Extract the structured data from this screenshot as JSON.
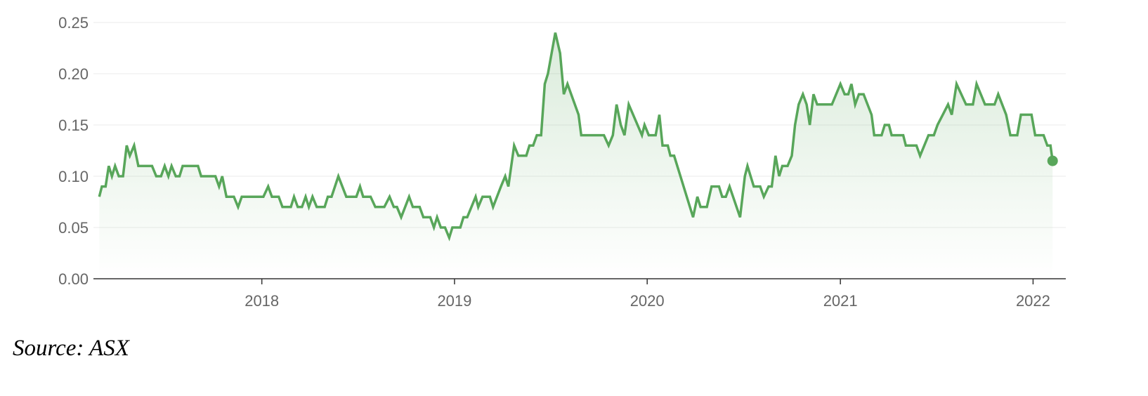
{
  "chart_data": {
    "type": "area",
    "title": "",
    "xlabel": "",
    "ylabel": "",
    "ylim": [
      0,
      0.25
    ],
    "xlim": [
      "2017-02-16",
      "2022-03-04"
    ],
    "yticks": [
      "0.00",
      "0.05",
      "0.10",
      "0.15",
      "0.20",
      "0.25"
    ],
    "xticks": [
      "2018",
      "2019",
      "2020",
      "2021",
      "2022"
    ],
    "grid": true,
    "colors": {
      "line": "#58a65a",
      "fill": "#58a65a"
    },
    "series": [
      {
        "points": [
          [
            "2017-02-27",
            0.08
          ],
          [
            "2017-03-04",
            0.09
          ],
          [
            "2017-03-11",
            0.09
          ],
          [
            "2017-03-17",
            0.11
          ],
          [
            "2017-03-23",
            0.1
          ],
          [
            "2017-03-29",
            0.11
          ],
          [
            "2017-04-05",
            0.1
          ],
          [
            "2017-04-13",
            0.1
          ],
          [
            "2017-04-20",
            0.13
          ],
          [
            "2017-04-26",
            0.12
          ],
          [
            "2017-05-04",
            0.13
          ],
          [
            "2017-05-12",
            0.11
          ],
          [
            "2017-06-07",
            0.11
          ],
          [
            "2017-06-15",
            0.1
          ],
          [
            "2017-06-24",
            0.1
          ],
          [
            "2017-07-01",
            0.11
          ],
          [
            "2017-07-08",
            0.1
          ],
          [
            "2017-07-14",
            0.11
          ],
          [
            "2017-07-22",
            0.1
          ],
          [
            "2017-07-29",
            0.1
          ],
          [
            "2017-08-04",
            0.11
          ],
          [
            "2017-09-02",
            0.11
          ],
          [
            "2017-09-08",
            0.1
          ],
          [
            "2017-10-05",
            0.1
          ],
          [
            "2017-10-12",
            0.09
          ],
          [
            "2017-10-18",
            0.1
          ],
          [
            "2017-10-26",
            0.08
          ],
          [
            "2017-11-09",
            0.08
          ],
          [
            "2017-11-17",
            0.07
          ],
          [
            "2017-11-24",
            0.08
          ],
          [
            "2018-01-04",
            0.08
          ],
          [
            "2018-01-13",
            0.09
          ],
          [
            "2018-01-20",
            0.08
          ],
          [
            "2018-02-02",
            0.08
          ],
          [
            "2018-02-09",
            0.07
          ],
          [
            "2018-02-25",
            0.07
          ],
          [
            "2018-03-03",
            0.08
          ],
          [
            "2018-03-10",
            0.07
          ],
          [
            "2018-03-18",
            0.07
          ],
          [
            "2018-03-25",
            0.08
          ],
          [
            "2018-03-31",
            0.07
          ],
          [
            "2018-04-07",
            0.08
          ],
          [
            "2018-04-15",
            0.07
          ],
          [
            "2018-04-30",
            0.07
          ],
          [
            "2018-05-06",
            0.08
          ],
          [
            "2018-05-13",
            0.08
          ],
          [
            "2018-05-26",
            0.1
          ],
          [
            "2018-06-10",
            0.08
          ],
          [
            "2018-06-29",
            0.08
          ],
          [
            "2018-07-06",
            0.09
          ],
          [
            "2018-07-12",
            0.08
          ],
          [
            "2018-07-26",
            0.08
          ],
          [
            "2018-08-04",
            0.07
          ],
          [
            "2018-08-21",
            0.07
          ],
          [
            "2018-08-31",
            0.08
          ],
          [
            "2018-09-08",
            0.07
          ],
          [
            "2018-09-14",
            0.07
          ],
          [
            "2018-09-22",
            0.06
          ],
          [
            "2018-10-07",
            0.08
          ],
          [
            "2018-10-14",
            0.07
          ],
          [
            "2018-10-27",
            0.07
          ],
          [
            "2018-11-03",
            0.06
          ],
          [
            "2018-11-16",
            0.06
          ],
          [
            "2018-11-23",
            0.05
          ],
          [
            "2018-11-29",
            0.06
          ],
          [
            "2018-12-06",
            0.05
          ],
          [
            "2018-12-14",
            0.05
          ],
          [
            "2018-12-22",
            0.04
          ],
          [
            "2018-12-28",
            0.05
          ],
          [
            "2019-01-12",
            0.05
          ],
          [
            "2019-01-18",
            0.06
          ],
          [
            "2019-01-25",
            0.06
          ],
          [
            "2019-02-02",
            0.07
          ],
          [
            "2019-02-10",
            0.08
          ],
          [
            "2019-02-15",
            0.07
          ],
          [
            "2019-02-23",
            0.08
          ],
          [
            "2019-03-09",
            0.08
          ],
          [
            "2019-03-15",
            0.07
          ],
          [
            "2019-03-30",
            0.09
          ],
          [
            "2019-04-07",
            0.1
          ],
          [
            "2019-04-13",
            0.09
          ],
          [
            "2019-04-24",
            0.13
          ],
          [
            "2019-05-02",
            0.12
          ],
          [
            "2019-05-17",
            0.12
          ],
          [
            "2019-05-23",
            0.13
          ],
          [
            "2019-05-30",
            0.13
          ],
          [
            "2019-06-06",
            0.14
          ],
          [
            "2019-06-14",
            0.14
          ],
          [
            "2019-06-21",
            0.19
          ],
          [
            "2019-06-27",
            0.2
          ],
          [
            "2019-07-11",
            0.24
          ],
          [
            "2019-07-20",
            0.22
          ],
          [
            "2019-07-27",
            0.18
          ],
          [
            "2019-08-03",
            0.19
          ],
          [
            "2019-08-24",
            0.16
          ],
          [
            "2019-08-29",
            0.14
          ],
          [
            "2019-10-11",
            0.14
          ],
          [
            "2019-10-20",
            0.13
          ],
          [
            "2019-10-28",
            0.14
          ],
          [
            "2019-11-04",
            0.17
          ],
          [
            "2019-11-12",
            0.15
          ],
          [
            "2019-11-19",
            0.14
          ],
          [
            "2019-11-27",
            0.17
          ],
          [
            "2019-12-22",
            0.14
          ],
          [
            "2019-12-27",
            0.15
          ],
          [
            "2020-01-04",
            0.14
          ],
          [
            "2020-01-17",
            0.14
          ],
          [
            "2020-01-24",
            0.16
          ],
          [
            "2020-01-30",
            0.13
          ],
          [
            "2020-02-09",
            0.13
          ],
          [
            "2020-02-14",
            0.12
          ],
          [
            "2020-02-21",
            0.12
          ],
          [
            "2020-03-28",
            0.06
          ],
          [
            "2020-04-05",
            0.08
          ],
          [
            "2020-04-11",
            0.07
          ],
          [
            "2020-04-23",
            0.07
          ],
          [
            "2020-05-02",
            0.09
          ],
          [
            "2020-05-16",
            0.09
          ],
          [
            "2020-05-22",
            0.08
          ],
          [
            "2020-05-29",
            0.08
          ],
          [
            "2020-06-05",
            0.09
          ],
          [
            "2020-06-25",
            0.06
          ],
          [
            "2020-07-04",
            0.1
          ],
          [
            "2020-07-09",
            0.11
          ],
          [
            "2020-07-21",
            0.09
          ],
          [
            "2020-08-02",
            0.09
          ],
          [
            "2020-08-09",
            0.08
          ],
          [
            "2020-08-18",
            0.09
          ],
          [
            "2020-08-24",
            0.09
          ],
          [
            "2020-08-31",
            0.12
          ],
          [
            "2020-09-07",
            0.1
          ],
          [
            "2020-09-13",
            0.11
          ],
          [
            "2020-09-23",
            0.11
          ],
          [
            "2020-10-01",
            0.12
          ],
          [
            "2020-10-07",
            0.15
          ],
          [
            "2020-10-14",
            0.17
          ],
          [
            "2020-10-22",
            0.18
          ],
          [
            "2020-10-29",
            0.17
          ],
          [
            "2020-11-04",
            0.15
          ],
          [
            "2020-11-11",
            0.18
          ],
          [
            "2020-11-18",
            0.17
          ],
          [
            "2020-12-16",
            0.17
          ],
          [
            "2021-01-01",
            0.19
          ],
          [
            "2021-01-09",
            0.18
          ],
          [
            "2021-01-16",
            0.18
          ],
          [
            "2021-01-22",
            0.19
          ],
          [
            "2021-01-29",
            0.17
          ],
          [
            "2021-02-05",
            0.18
          ],
          [
            "2021-02-14",
            0.18
          ],
          [
            "2021-03-01",
            0.16
          ],
          [
            "2021-03-06",
            0.14
          ],
          [
            "2021-03-20",
            0.14
          ],
          [
            "2021-03-26",
            0.15
          ],
          [
            "2021-04-03",
            0.15
          ],
          [
            "2021-04-08",
            0.14
          ],
          [
            "2021-04-30",
            0.14
          ],
          [
            "2021-05-05",
            0.13
          ],
          [
            "2021-05-25",
            0.13
          ],
          [
            "2021-06-01",
            0.12
          ],
          [
            "2021-06-17",
            0.14
          ],
          [
            "2021-06-27",
            0.14
          ],
          [
            "2021-07-04",
            0.15
          ],
          [
            "2021-07-14",
            0.16
          ],
          [
            "2021-07-24",
            0.17
          ],
          [
            "2021-07-31",
            0.16
          ],
          [
            "2021-08-09",
            0.19
          ],
          [
            "2021-08-27",
            0.17
          ],
          [
            "2021-09-09",
            0.17
          ],
          [
            "2021-09-16",
            0.19
          ],
          [
            "2021-10-02",
            0.17
          ],
          [
            "2021-10-20",
            0.17
          ],
          [
            "2021-10-27",
            0.18
          ],
          [
            "2021-11-11",
            0.16
          ],
          [
            "2021-11-19",
            0.14
          ],
          [
            "2021-12-02",
            0.14
          ],
          [
            "2021-12-09",
            0.16
          ],
          [
            "2021-12-29",
            0.16
          ],
          [
            "2022-01-05",
            0.14
          ],
          [
            "2022-01-21",
            0.14
          ],
          [
            "2022-01-28",
            0.13
          ],
          [
            "2022-02-03",
            0.13
          ],
          [
            "2022-02-07",
            0.115
          ]
        ]
      }
    ]
  },
  "source": "Source: ASX"
}
